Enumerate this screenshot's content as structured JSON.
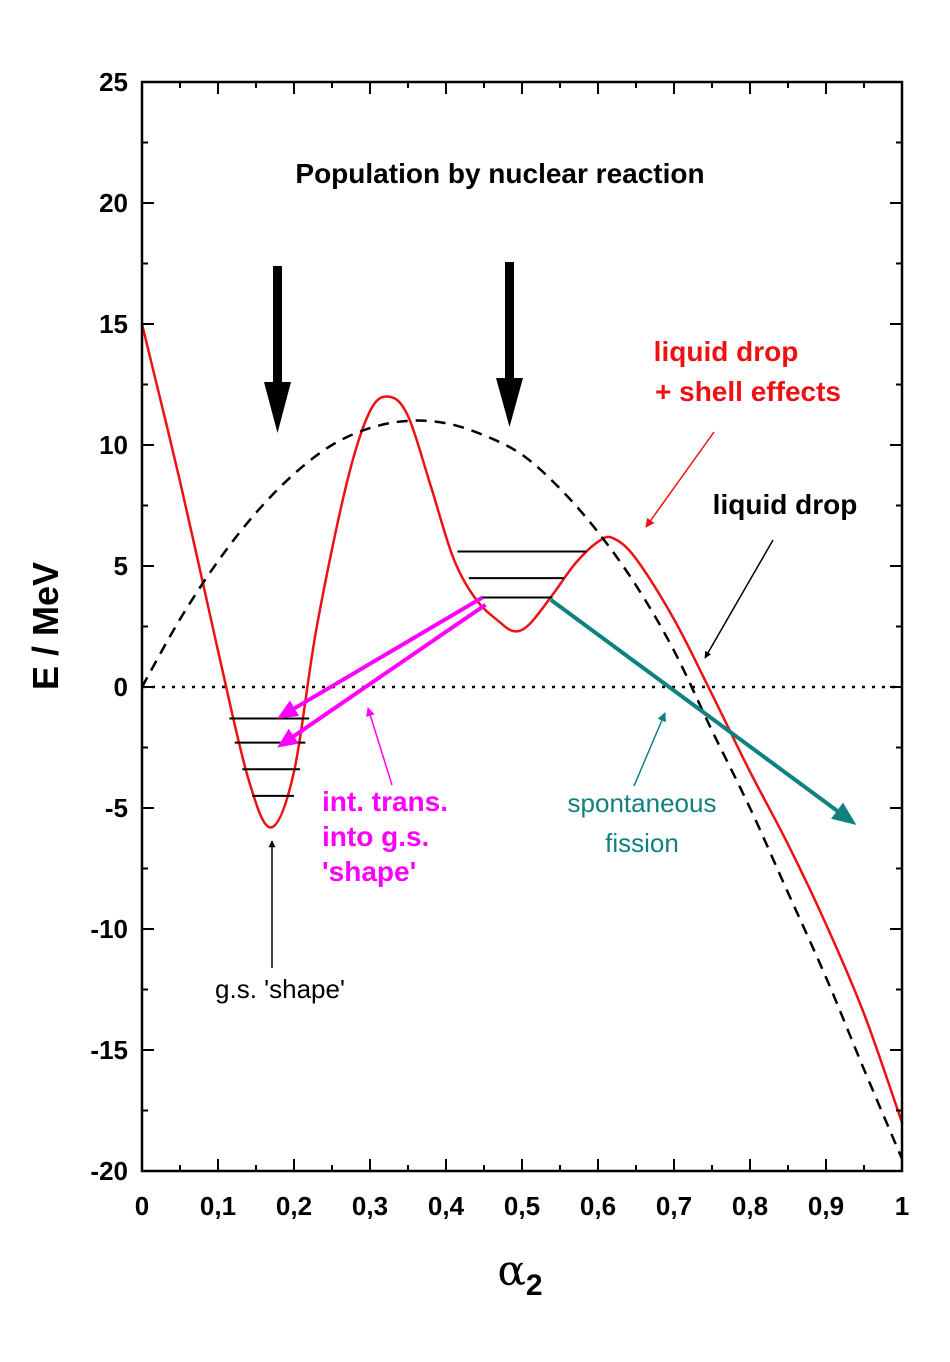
{
  "chart_data": {
    "type": "line",
    "title": "Population by nuclear reaction",
    "xlabel": "α",
    "xlabel_subscript": "2",
    "ylabel": "E / MeV",
    "xlim": [
      0,
      1
    ],
    "ylim": [
      -20,
      25
    ],
    "x_ticks": [
      0,
      0.1,
      0.2,
      0.3,
      0.4,
      0.5,
      0.6,
      0.7,
      0.8,
      0.9,
      1
    ],
    "x_tick_labels": [
      "0",
      "0,1",
      "0,2",
      "0,3",
      "0,4",
      "0,5",
      "0,6",
      "0,7",
      "0,8",
      "0,9",
      "1"
    ],
    "y_ticks": [
      -20,
      -15,
      -10,
      -5,
      0,
      5,
      10,
      15,
      20,
      25
    ],
    "y_tick_labels": [
      "-20",
      "-15",
      "-10",
      "-5",
      "0",
      "5",
      "10",
      "15",
      "20",
      "25"
    ],
    "grid": false,
    "series": [
      {
        "name": "liquid drop + shell effects",
        "color": "#ee1111",
        "style": "solid",
        "x": [
          0,
          0.05,
          0.1,
          0.14,
          0.17,
          0.2,
          0.23,
          0.27,
          0.3,
          0.325,
          0.35,
          0.38,
          0.41,
          0.44,
          0.47,
          0.49,
          0.51,
          0.54,
          0.57,
          0.6,
          0.62,
          0.65,
          0.7,
          0.75,
          0.8,
          0.85,
          0.9,
          0.95,
          1
        ],
        "y": [
          15,
          8.5,
          1.5,
          -3.8,
          -5.8,
          -3.5,
          2.5,
          8.5,
          11.4,
          12,
          11.2,
          8.3,
          5.3,
          3.6,
          2.7,
          2.3,
          2.6,
          3.8,
          5.1,
          6.0,
          6.15,
          5.3,
          2.8,
          -0.3,
          -3.5,
          -6.5,
          -9.8,
          -13.5,
          -18
        ]
      },
      {
        "name": "liquid drop",
        "color": "#000000",
        "style": "dashed",
        "x": [
          0,
          0.05,
          0.1,
          0.15,
          0.2,
          0.25,
          0.3,
          0.35,
          0.4,
          0.45,
          0.5,
          0.55,
          0.6,
          0.65,
          0.7,
          0.75,
          0.8,
          0.85,
          0.9,
          0.95,
          1
        ],
        "y": [
          0,
          2.8,
          5.2,
          7.2,
          8.8,
          10.0,
          10.7,
          11.0,
          10.9,
          10.4,
          9.6,
          8.2,
          6.4,
          4.2,
          1.5,
          -1.8,
          -5.0,
          -8.5,
          -12.0,
          -15.8,
          -19.5
        ]
      },
      {
        "name": "zero line",
        "color": "#000000",
        "style": "dotted",
        "x": [
          0,
          1
        ],
        "y": [
          0,
          0
        ]
      }
    ],
    "levels": [
      {
        "x1": 0.115,
        "x2": 0.22,
        "y": -1.3
      },
      {
        "x1": 0.122,
        "x2": 0.215,
        "y": -2.3
      },
      {
        "x1": 0.132,
        "x2": 0.208,
        "y": -3.4
      },
      {
        "x1": 0.145,
        "x2": 0.2,
        "y": -4.5
      },
      {
        "x1": 0.415,
        "x2": 0.585,
        "y": 5.6
      },
      {
        "x1": 0.43,
        "x2": 0.555,
        "y": 4.5
      },
      {
        "x1": 0.445,
        "x2": 0.54,
        "y": 3.7
      }
    ],
    "annotations": {
      "liquid_drop_shell_line1": "liquid drop",
      "liquid_drop_shell_line2": "+ shell effects",
      "liquid_drop": "liquid drop",
      "int_trans_line1": "int. trans.",
      "int_trans_line2": "into g.s.",
      "int_trans_line3": "'shape'",
      "spontaneous_line1": "spontaneous",
      "spontaneous_line2": "fission",
      "gs_shape": "g.s. 'shape'"
    },
    "colors": {
      "shell_curve": "#ee1111",
      "internal_transition": "#ff00ff",
      "fission": "#108080",
      "black": "#000000"
    }
  }
}
